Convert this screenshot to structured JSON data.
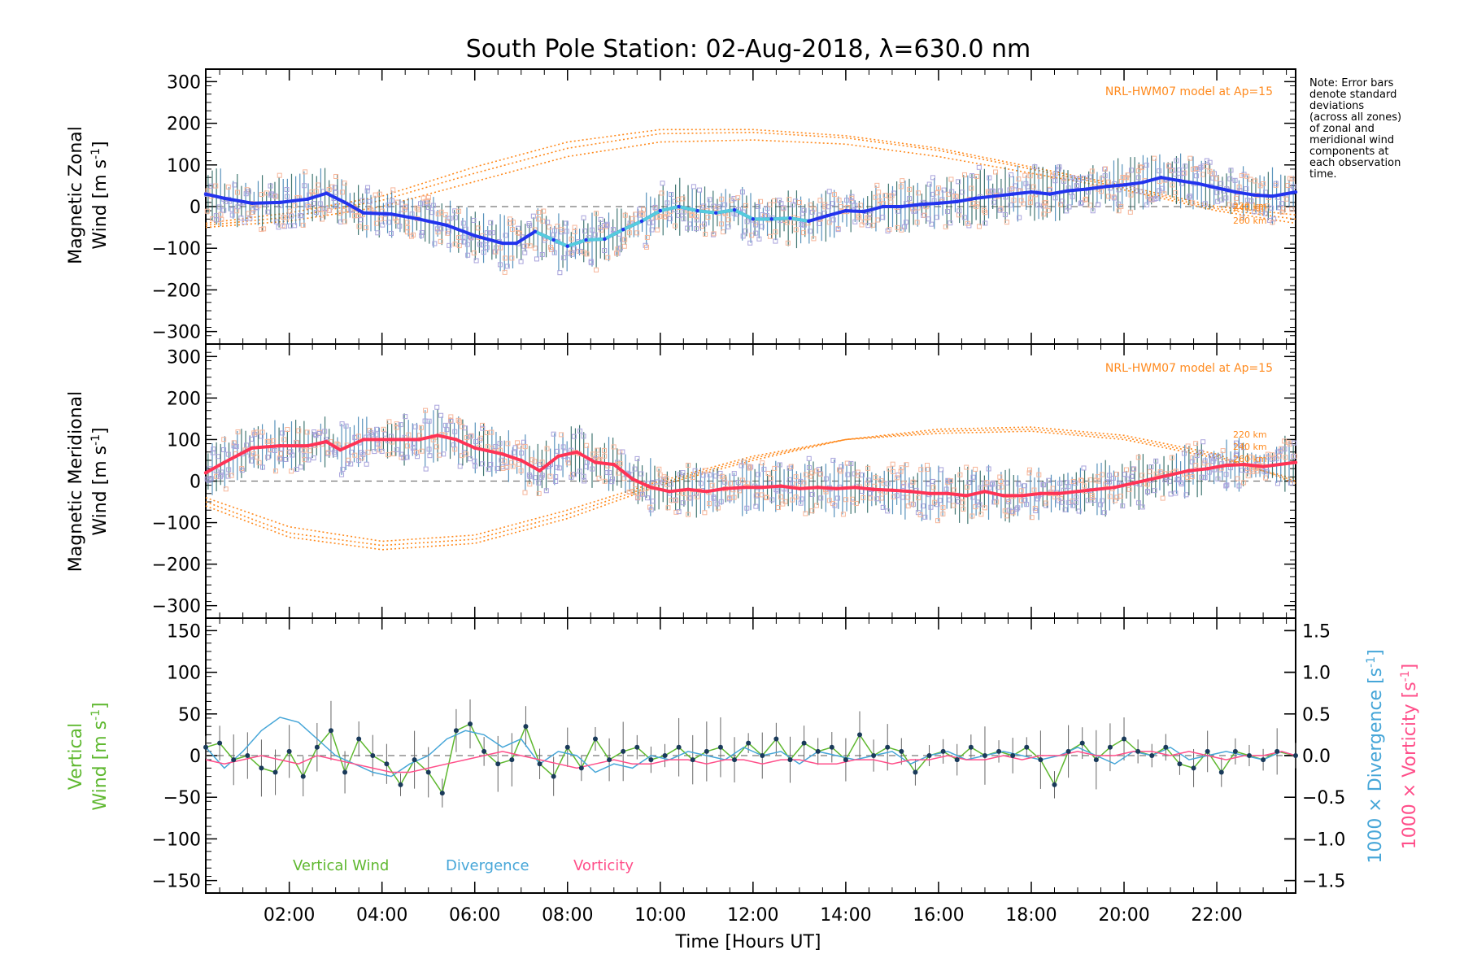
{
  "title": "South Pole Station: 02-Aug-2018, λ=630.0 nm",
  "note_lines": [
    "Note: Error bars",
    "denote standard",
    "deviations",
    "(across all zones)",
    "of zonal and",
    "meridional wind",
    "components at",
    "each observation",
    "time."
  ],
  "colors": {
    "zonal": "#2233ee",
    "zonal_alt": "#55ccdd",
    "meridional": "#ff3355",
    "model": "#ff8a1e",
    "scatter": "#a9a3dc",
    "scatter_warm": "#f7b69a",
    "vertical": "#5fb830",
    "divergence": "#46a6d8",
    "vorticity": "#ff4f8a",
    "point": "#1a3a5a"
  },
  "chart_data": [
    {
      "type": "line",
      "id": "zonal",
      "title": "",
      "ylabel_line1": "Magnetic Zonal",
      "ylabel_line2_prefix": "Wind [m s",
      "ylabel_line2_exp": "-1",
      "ylabel_line2_suffix": "]",
      "xlim": [
        0.2,
        23.7
      ],
      "ylim": [
        -330,
        330
      ],
      "yticks": [
        -300,
        -200,
        -100,
        0,
        100,
        200,
        300
      ],
      "yticklabels": [
        "−300",
        "−200",
        "−100",
        "0",
        "100",
        "200",
        "300"
      ],
      "model_label": "NRL-HWM07 model at Ap=15",
      "alt_labels": [
        "220 km",
        "240 km",
        "260 km"
      ],
      "series": [
        {
          "name": "zonal wind",
          "x": [
            0.2,
            0.6,
            1.2,
            1.8,
            2.4,
            2.8,
            3.2,
            3.6,
            4.2,
            4.8,
            5.4,
            6.0,
            6.6,
            6.9,
            7.3,
            7.7,
            8.0,
            8.4,
            8.8,
            9.2,
            9.6,
            10.0,
            10.4,
            10.8,
            11.2,
            11.6,
            12.0,
            12.4,
            12.8,
            13.2,
            13.6,
            14.0,
            14.4,
            14.8,
            15.2,
            15.6,
            16.0,
            16.4,
            16.8,
            17.2,
            17.6,
            18.0,
            18.4,
            18.8,
            19.2,
            19.6,
            20.0,
            20.4,
            20.8,
            21.2,
            21.6,
            22.0,
            22.4,
            22.8,
            23.2,
            23.7
          ],
          "y": [
            30,
            20,
            8,
            10,
            18,
            32,
            10,
            -15,
            -18,
            -30,
            -45,
            -70,
            -88,
            -88,
            -60,
            -80,
            -95,
            -80,
            -78,
            -55,
            -35,
            -10,
            0,
            -10,
            -15,
            -8,
            -30,
            -30,
            -28,
            -35,
            -22,
            -10,
            -12,
            0,
            0,
            5,
            8,
            12,
            20,
            25,
            30,
            35,
            30,
            38,
            42,
            48,
            52,
            58,
            70,
            62,
            55,
            45,
            35,
            28,
            25,
            35
          ]
        }
      ],
      "model_curves": [
        {
          "name": "220 km",
          "x": [
            0.2,
            2,
            4,
            6,
            8,
            10,
            12,
            14,
            16,
            18,
            20,
            22,
            23.7
          ],
          "y": [
            -50,
            -35,
            0,
            60,
            120,
            155,
            160,
            150,
            120,
            80,
            40,
            -10,
            -40
          ]
        },
        {
          "name": "240 km",
          "x": [
            0.2,
            2,
            4,
            6,
            8,
            10,
            12,
            14,
            16,
            18,
            20,
            22,
            23.7
          ],
          "y": [
            -45,
            -25,
            15,
            80,
            140,
            175,
            178,
            165,
            135,
            90,
            45,
            -5,
            -30
          ]
        },
        {
          "name": "260 km",
          "x": [
            0.2,
            2,
            4,
            6,
            8,
            10,
            12,
            14,
            16,
            18,
            20,
            22,
            23.7
          ],
          "y": [
            -40,
            -15,
            25,
            95,
            155,
            185,
            185,
            170,
            140,
            95,
            50,
            0,
            -20
          ]
        }
      ]
    },
    {
      "type": "line",
      "id": "meridional",
      "title": "",
      "ylabel_line1": "Magnetic Meridional",
      "ylabel_line2_prefix": "Wind [m s",
      "ylabel_line2_exp": "-1",
      "ylabel_line2_suffix": "]",
      "xlim": [
        0.2,
        23.7
      ],
      "ylim": [
        -330,
        330
      ],
      "yticks": [
        -300,
        -200,
        -100,
        0,
        100,
        200,
        300
      ],
      "yticklabels": [
        "−300",
        "−200",
        "−100",
        "0",
        "100",
        "200",
        "300"
      ],
      "model_label": "NRL-HWM07 model at Ap=15",
      "alt_labels": [
        "220 km",
        "240 km",
        "260 km"
      ],
      "series": [
        {
          "name": "meridional wind",
          "x": [
            0.2,
            0.6,
            1.2,
            1.8,
            2.4,
            2.8,
            3.1,
            3.6,
            4.2,
            4.8,
            5.2,
            5.6,
            6.0,
            6.6,
            7.0,
            7.4,
            7.8,
            8.2,
            8.6,
            9.0,
            9.4,
            9.8,
            10.2,
            10.6,
            11.0,
            11.4,
            11.8,
            12.2,
            12.6,
            13.0,
            13.4,
            13.8,
            14.2,
            14.6,
            15.0,
            15.4,
            15.8,
            16.2,
            16.6,
            17.0,
            17.4,
            17.8,
            18.2,
            18.6,
            19.0,
            19.4,
            19.8,
            20.2,
            20.6,
            21.0,
            21.4,
            21.8,
            22.2,
            22.6,
            23.0,
            23.7
          ],
          "y": [
            20,
            45,
            80,
            85,
            85,
            95,
            75,
            100,
            100,
            100,
            110,
            100,
            80,
            65,
            50,
            25,
            60,
            70,
            45,
            40,
            5,
            -15,
            -25,
            -20,
            -25,
            -18,
            -15,
            -15,
            -12,
            -18,
            -15,
            -18,
            -15,
            -20,
            -22,
            -25,
            -30,
            -30,
            -35,
            -25,
            -35,
            -35,
            -30,
            -30,
            -25,
            -20,
            -15,
            -5,
            5,
            15,
            25,
            30,
            38,
            40,
            35,
            45
          ]
        }
      ],
      "model_curves": [
        {
          "name": "220 km",
          "x": [
            0.2,
            2,
            4,
            6,
            8,
            10,
            12,
            14,
            16,
            18,
            20,
            22,
            23.7
          ],
          "y": [
            -40,
            -110,
            -145,
            -130,
            -70,
            0,
            60,
            100,
            115,
            120,
            100,
            55,
            5
          ]
        },
        {
          "name": "240 km",
          "x": [
            0.2,
            2,
            4,
            6,
            8,
            10,
            12,
            14,
            16,
            18,
            20,
            22,
            23.7
          ],
          "y": [
            -50,
            -125,
            -155,
            -140,
            -80,
            -5,
            55,
            100,
            120,
            125,
            105,
            60,
            0
          ]
        },
        {
          "name": "260 km",
          "x": [
            0.2,
            2,
            4,
            6,
            8,
            10,
            12,
            14,
            16,
            18,
            20,
            22,
            23.7
          ],
          "y": [
            -60,
            -135,
            -165,
            -150,
            -90,
            -10,
            50,
            100,
            125,
            130,
            110,
            65,
            -5
          ]
        }
      ]
    },
    {
      "type": "line",
      "id": "vertical",
      "title": "",
      "xlabel": "Time [Hours UT]",
      "ylabel_line1": "Vertical",
      "ylabel_line2_prefix": "Wind [m s",
      "ylabel_line2_exp": "-1",
      "ylabel_line2_suffix": "]",
      "right_ylabel_div_prefix": "1000 × Divergence [s",
      "right_ylabel_vor_prefix": "1000 × Vorticity [s",
      "right_ylabel_exp": "-1",
      "right_ylabel_suffix": "]",
      "xlim": [
        0.2,
        23.7
      ],
      "ylim": [
        -165,
        165
      ],
      "yticks": [
        -150,
        -100,
        -50,
        0,
        50,
        100,
        150
      ],
      "yticklabels": [
        "−150",
        "−100",
        "−50",
        "0",
        "50",
        "100",
        "150"
      ],
      "right_ylim": [
        -1.65,
        1.65
      ],
      "right_yticks": [
        -1.5,
        -1.0,
        -0.5,
        0.0,
        0.5,
        1.0,
        1.5
      ],
      "right_yticklabels": [
        "−1.5",
        "−1.0",
        "−0.5",
        "0.0",
        "0.5",
        "1.0",
        "1.5"
      ],
      "xticks": [
        2,
        4,
        6,
        8,
        10,
        12,
        14,
        16,
        18,
        20,
        22
      ],
      "xticklabels": [
        "02:00",
        "04:00",
        "06:00",
        "08:00",
        "10:00",
        "12:00",
        "14:00",
        "16:00",
        "18:00",
        "20:00",
        "22:00"
      ],
      "legend": [
        "Vertical Wind",
        "Divergence",
        "Vorticity"
      ],
      "series": [
        {
          "name": "Vertical Wind",
          "x": [
            0.2,
            0.5,
            0.8,
            1.1,
            1.4,
            1.7,
            2.0,
            2.3,
            2.6,
            2.9,
            3.2,
            3.5,
            3.8,
            4.1,
            4.4,
            4.7,
            5.0,
            5.3,
            5.6,
            5.9,
            6.2,
            6.5,
            6.8,
            7.1,
            7.4,
            7.7,
            8.0,
            8.3,
            8.6,
            8.9,
            9.2,
            9.5,
            9.8,
            10.1,
            10.4,
            10.7,
            11.0,
            11.3,
            11.6,
            11.9,
            12.2,
            12.5,
            12.8,
            13.1,
            13.4,
            13.7,
            14.0,
            14.3,
            14.6,
            14.9,
            15.2,
            15.5,
            15.8,
            16.1,
            16.4,
            16.7,
            17.0,
            17.3,
            17.6,
            17.9,
            18.2,
            18.5,
            18.8,
            19.1,
            19.4,
            19.7,
            20.0,
            20.3,
            20.6,
            20.9,
            21.2,
            21.5,
            21.8,
            22.1,
            22.4,
            22.7,
            23.0,
            23.3,
            23.7
          ],
          "y": [
            10,
            15,
            -5,
            0,
            -15,
            -20,
            5,
            -25,
            10,
            30,
            -20,
            20,
            0,
            -10,
            -35,
            -5,
            -20,
            -45,
            30,
            38,
            5,
            -10,
            -5,
            35,
            -10,
            -25,
            10,
            -15,
            20,
            -5,
            5,
            10,
            -5,
            0,
            10,
            -5,
            5,
            10,
            -5,
            15,
            0,
            20,
            -5,
            15,
            5,
            10,
            -5,
            25,
            0,
            10,
            5,
            -20,
            0,
            5,
            -5,
            10,
            0,
            5,
            0,
            10,
            -5,
            -35,
            5,
            15,
            -5,
            10,
            20,
            5,
            0,
            10,
            -10,
            -15,
            5,
            -20,
            5,
            0,
            -5,
            5,
            0
          ]
        },
        {
          "name": "Divergence",
          "x": [
            0.2,
            0.6,
            1.0,
            1.4,
            1.8,
            2.2,
            2.6,
            3.0,
            3.4,
            3.8,
            4.2,
            4.6,
            5.0,
            5.4,
            5.8,
            6.2,
            6.6,
            7.0,
            7.4,
            7.8,
            8.2,
            8.6,
            9.0,
            9.4,
            9.8,
            10.2,
            10.6,
            11.0,
            11.4,
            11.8,
            12.2,
            12.6,
            13.0,
            13.4,
            13.8,
            14.2,
            14.6,
            15.0,
            15.4,
            15.8,
            16.2,
            16.6,
            17.0,
            17.4,
            17.8,
            18.2,
            18.6,
            19.0,
            19.4,
            19.8,
            20.2,
            20.6,
            21.0,
            21.4,
            21.8,
            22.2,
            22.6,
            23.0,
            23.4,
            23.7
          ],
          "y": [
            0.1,
            -0.15,
            0.05,
            0.3,
            0.46,
            0.4,
            0.2,
            0.0,
            -0.1,
            -0.2,
            -0.25,
            -0.1,
            0.0,
            0.2,
            0.3,
            0.25,
            0.1,
            0.2,
            -0.1,
            0.05,
            0.0,
            -0.2,
            -0.1,
            -0.15,
            0.0,
            -0.05,
            0.05,
            0.0,
            -0.05,
            0.1,
            0.0,
            0.05,
            -0.1,
            0.05,
            0.0,
            -0.05,
            0.0,
            0.05,
            -0.1,
            0.0,
            0.05,
            -0.05,
            0.0,
            0.05,
            0.0,
            -0.05,
            0.0,
            0.1,
            0.0,
            -0.1,
            0.05,
            0.0,
            0.1,
            -0.05,
            0.0,
            0.05,
            0.0,
            -0.05,
            0.05,
            0.0
          ]
        },
        {
          "name": "Vorticity",
          "x": [
            0.2,
            0.6,
            1.0,
            1.4,
            1.8,
            2.2,
            2.6,
            3.0,
            3.4,
            3.8,
            4.2,
            4.6,
            5.0,
            5.4,
            5.8,
            6.2,
            6.6,
            7.0,
            7.4,
            7.8,
            8.2,
            8.6,
            9.0,
            9.4,
            9.8,
            10.2,
            10.6,
            11.0,
            11.4,
            11.8,
            12.2,
            12.6,
            13.0,
            13.4,
            13.8,
            14.2,
            14.6,
            15.0,
            15.4,
            15.8,
            16.2,
            16.6,
            17.0,
            17.4,
            17.8,
            18.2,
            18.6,
            19.0,
            19.4,
            19.8,
            20.2,
            20.6,
            21.0,
            21.4,
            21.8,
            22.2,
            22.6,
            23.0,
            23.4,
            23.7
          ],
          "y": [
            -0.05,
            -0.1,
            -0.05,
            0.0,
            -0.05,
            -0.1,
            0.0,
            -0.05,
            -0.1,
            -0.15,
            -0.2,
            -0.2,
            -0.15,
            -0.1,
            -0.05,
            0.0,
            0.05,
            0.0,
            -0.05,
            -0.1,
            -0.15,
            -0.1,
            -0.05,
            -0.1,
            -0.1,
            -0.05,
            -0.05,
            -0.1,
            -0.05,
            -0.05,
            -0.1,
            -0.05,
            -0.05,
            -0.1,
            -0.1,
            -0.05,
            -0.05,
            -0.1,
            -0.05,
            -0.05,
            0.0,
            -0.05,
            -0.05,
            0.0,
            -0.05,
            0.0,
            0.0,
            0.05,
            0.0,
            0.0,
            0.05,
            0.05,
            0.0,
            0.05,
            0.0,
            -0.05,
            0.0,
            0.0,
            0.05,
            0.0
          ]
        }
      ]
    }
  ]
}
